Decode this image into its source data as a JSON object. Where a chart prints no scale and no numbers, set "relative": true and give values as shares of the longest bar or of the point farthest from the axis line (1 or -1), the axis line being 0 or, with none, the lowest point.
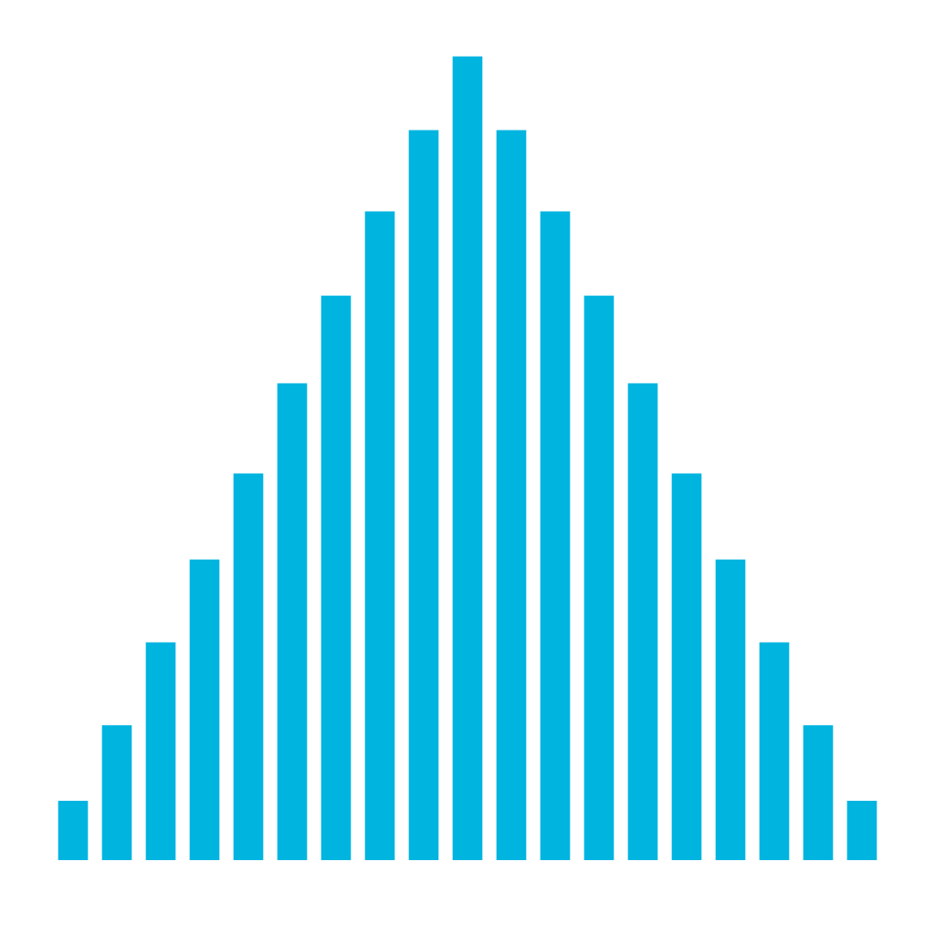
{
  "chart_data": {
    "type": "bar",
    "relative": true,
    "categories": [
      null,
      null,
      null,
      null,
      null,
      null,
      null,
      null,
      null,
      null,
      null,
      null,
      null,
      null,
      null,
      null,
      null,
      null,
      null
    ],
    "values": [
      0.074,
      0.168,
      0.271,
      0.374,
      0.481,
      0.593,
      0.702,
      0.807,
      0.908,
      1,
      0.908,
      0.807,
      0.702,
      0.593,
      0.481,
      0.374,
      0.271,
      0.168,
      0.074
    ],
    "color": "#00b4e0",
    "grid": false,
    "legend": false
  }
}
